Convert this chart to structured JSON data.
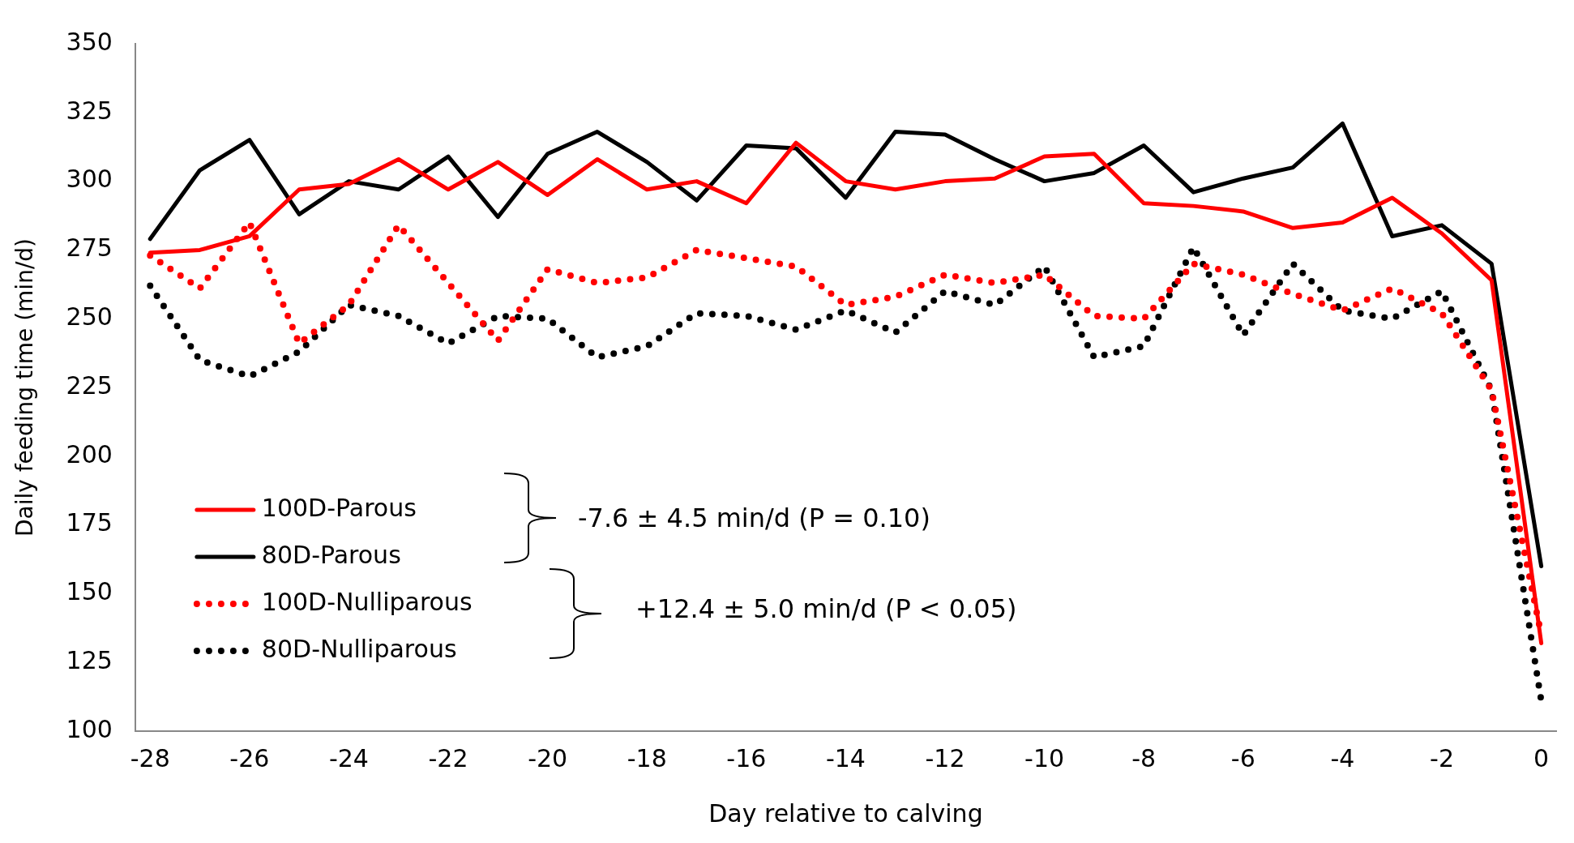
{
  "chart_data": {
    "type": "line",
    "xlabel": "Day relative to calving",
    "ylabel": "Daily feeding time (min/d)",
    "x": [
      -28,
      -27,
      -26,
      -25,
      -24,
      -23,
      -22,
      -21,
      -20,
      -19,
      -18,
      -17,
      -16,
      -15,
      -14,
      -13,
      -12,
      -11,
      -10,
      -9,
      -8,
      -7,
      -6,
      -5,
      -4,
      -3,
      -2,
      -1,
      0
    ],
    "series": [
      {
        "name": "100D-Parous",
        "color": "#ff0000",
        "line_style": "solid",
        "values": [
          274,
          275,
          280,
          297,
          299,
          308,
          297,
          307,
          295,
          308,
          297,
          300,
          292,
          314,
          300,
          297,
          300,
          301,
          309,
          310,
          292,
          291,
          289,
          283,
          285,
          294,
          281,
          264,
          132
        ]
      },
      {
        "name": "80D-Parous",
        "color": "#000000",
        "line_style": "solid",
        "values": [
          279,
          304,
          315,
          288,
          300,
          297,
          309,
          287,
          310,
          318,
          307,
          293,
          313,
          312,
          294,
          318,
          317,
          308,
          300,
          303,
          313,
          296,
          301,
          305,
          321,
          280,
          284,
          270,
          160
        ]
      },
      {
        "name": "100D-Nulliparous",
        "color": "#ff0000",
        "line_style": "dotted",
        "values": [
          273,
          261,
          285,
          241,
          255,
          284,
          263,
          242,
          268,
          263,
          265,
          275,
          272,
          269,
          255,
          258,
          266,
          263,
          266,
          251,
          250,
          270,
          266,
          259,
          253,
          261,
          252,
          224,
          135
        ]
      },
      {
        "name": "80D-Nulliparous",
        "color": "#000000",
        "line_style": "dotted",
        "values": [
          262,
          235,
          229,
          238,
          255,
          251,
          241,
          251,
          250,
          236,
          240,
          252,
          251,
          246,
          253,
          245,
          260,
          255,
          269,
          236,
          240,
          276,
          244,
          270,
          253,
          250,
          260,
          224,
          111
        ]
      }
    ],
    "xlim": [
      -28.3,
      0.3
    ],
    "xticks": [
      -28,
      -26,
      -24,
      -22,
      -20,
      -18,
      -16,
      -14,
      -12,
      -10,
      -8,
      -6,
      -4,
      -2,
      0
    ],
    "ylim": [
      100,
      350
    ],
    "yticks": [
      100,
      125,
      150,
      175,
      200,
      225,
      250,
      275,
      300,
      325,
      350
    ],
    "grid": false,
    "legend": "bottom left",
    "marker": "none",
    "annotations": [
      "-7.6 ± 4.5 min/d (P = 0.10)",
      "+12.4 ± 5.0 min/d (P < 0.05)"
    ]
  }
}
